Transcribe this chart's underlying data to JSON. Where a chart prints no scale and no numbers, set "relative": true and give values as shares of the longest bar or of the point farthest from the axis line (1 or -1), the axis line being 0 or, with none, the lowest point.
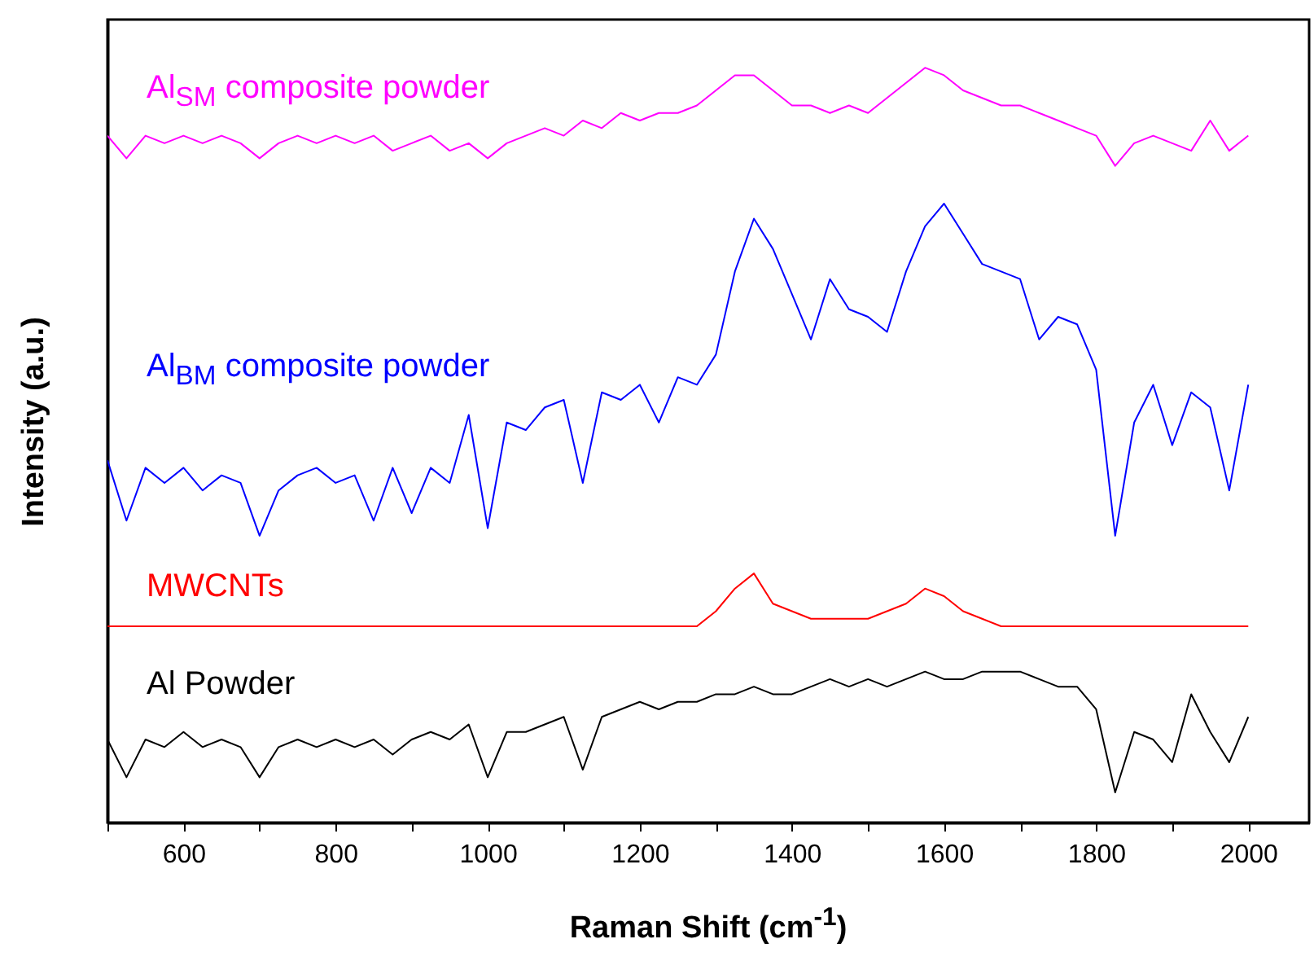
{
  "chart_data": {
    "type": "line",
    "xlabel": "Raman Shift (cm$^{-1}$)",
    "ylabel": "Intensity (a.u.)",
    "relative": true,
    "tick_labels": "x",
    "x": [
      500,
      525,
      550,
      575,
      600,
      625,
      650,
      675,
      700,
      725,
      750,
      775,
      800,
      825,
      850,
      875,
      900,
      925,
      950,
      975,
      1000,
      1025,
      1050,
      1075,
      1100,
      1125,
      1150,
      1175,
      1200,
      1225,
      1250,
      1275,
      1300,
      1325,
      1350,
      1375,
      1400,
      1425,
      1450,
      1475,
      1500,
      1525,
      1550,
      1575,
      1600,
      1625,
      1650,
      1675,
      1700,
      1725,
      1750,
      1775,
      1800,
      1825,
      1850,
      1875,
      1900,
      1925,
      1950,
      1975,
      2000
    ],
    "xlim": [
      500,
      2080
    ],
    "xticks": [
      {
        "value": 500,
        "label": null
      },
      600,
      {
        "value": 700,
        "label": null
      },
      800,
      {
        "value": 900,
        "label": null
      },
      1000,
      {
        "value": 1100,
        "label": null
      },
      1200,
      {
        "value": 1300,
        "label": null
      },
      1400,
      {
        "value": 1500,
        "label": null
      },
      1600,
      {
        "value": 1700,
        "label": null
      },
      1800,
      {
        "value": 1900,
        "label": null
      },
      2000
    ],
    "series": [
      {
        "name": "Al$_{SM}$ composite powder",
        "color": "#ff00ff",
        "values": [
          0.91,
          0.88,
          0.91,
          0.9,
          0.91,
          0.9,
          0.91,
          0.9,
          0.88,
          0.9,
          0.91,
          0.9,
          0.91,
          0.9,
          0.91,
          0.89,
          0.9,
          0.91,
          0.89,
          0.9,
          0.88,
          0.9,
          0.91,
          0.92,
          0.91,
          0.93,
          0.92,
          0.94,
          0.93,
          0.94,
          0.94,
          0.95,
          0.97,
          0.99,
          0.99,
          0.97,
          0.95,
          0.95,
          0.94,
          0.95,
          0.94,
          0.96,
          0.98,
          1.0,
          0.99,
          0.97,
          0.96,
          0.95,
          0.95,
          0.94,
          0.93,
          0.92,
          0.91,
          0.87,
          0.9,
          0.91,
          0.9,
          0.89,
          0.93,
          0.89,
          0.91
        ]
      },
      {
        "name": "Al$_{BM}$ composite powder",
        "color": "#0000ff",
        "values": [
          0.48,
          0.4,
          0.47,
          0.45,
          0.47,
          0.44,
          0.46,
          0.45,
          0.38,
          0.44,
          0.46,
          0.47,
          0.45,
          0.46,
          0.4,
          0.47,
          0.41,
          0.47,
          0.45,
          0.54,
          0.39,
          0.53,
          0.52,
          0.55,
          0.56,
          0.45,
          0.57,
          0.56,
          0.58,
          0.53,
          0.59,
          0.58,
          0.62,
          0.73,
          0.8,
          0.76,
          0.7,
          0.64,
          0.72,
          0.68,
          0.67,
          0.65,
          0.73,
          0.79,
          0.82,
          0.78,
          0.74,
          0.73,
          0.72,
          0.64,
          0.67,
          0.66,
          0.6,
          0.38,
          0.53,
          0.58,
          0.5,
          0.57,
          0.55,
          0.44,
          0.58
        ]
      },
      {
        "name": "MWCNTs",
        "color": "#ff0000",
        "values": [
          0.26,
          0.26,
          0.26,
          0.26,
          0.26,
          0.26,
          0.26,
          0.26,
          0.26,
          0.26,
          0.26,
          0.26,
          0.26,
          0.26,
          0.26,
          0.26,
          0.26,
          0.26,
          0.26,
          0.26,
          0.26,
          0.26,
          0.26,
          0.26,
          0.26,
          0.26,
          0.26,
          0.26,
          0.26,
          0.26,
          0.26,
          0.26,
          0.28,
          0.31,
          0.33,
          0.29,
          0.28,
          0.27,
          0.27,
          0.27,
          0.27,
          0.28,
          0.29,
          0.31,
          0.3,
          0.28,
          0.27,
          0.26,
          0.26,
          0.26,
          0.26,
          0.26,
          0.26,
          0.26,
          0.26,
          0.26,
          0.26,
          0.26,
          0.26,
          0.26,
          0.26
        ]
      },
      {
        "name": "Al Powder",
        "color": "#000000",
        "values": [
          0.11,
          0.06,
          0.11,
          0.1,
          0.12,
          0.1,
          0.11,
          0.1,
          0.06,
          0.1,
          0.11,
          0.1,
          0.11,
          0.1,
          0.11,
          0.09,
          0.11,
          0.12,
          0.11,
          0.13,
          0.06,
          0.12,
          0.12,
          0.13,
          0.14,
          0.07,
          0.14,
          0.15,
          0.16,
          0.15,
          0.16,
          0.16,
          0.17,
          0.17,
          0.18,
          0.17,
          0.17,
          0.18,
          0.19,
          0.18,
          0.19,
          0.18,
          0.19,
          0.2,
          0.19,
          0.19,
          0.2,
          0.2,
          0.2,
          0.19,
          0.18,
          0.18,
          0.15,
          0.04,
          0.12,
          0.11,
          0.08,
          0.17,
          0.12,
          0.08,
          0.14
        ]
      }
    ]
  }
}
